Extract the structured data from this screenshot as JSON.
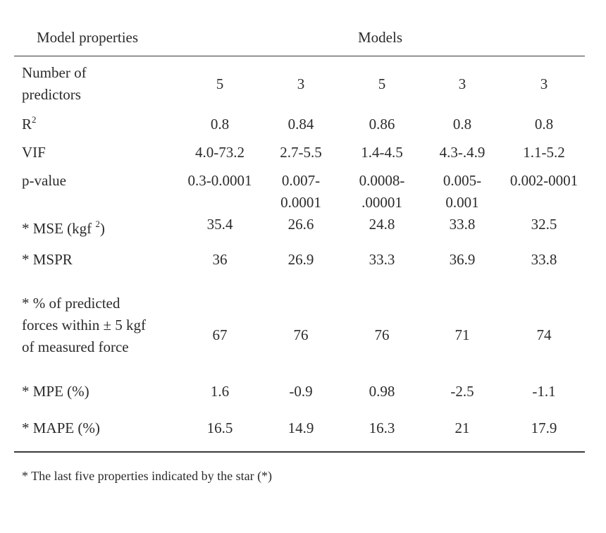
{
  "header": {
    "left": "Model properties",
    "right": "Models"
  },
  "rows": [
    {
      "label": "Number of\npredictors",
      "values": [
        "5",
        "3",
        "5",
        "3",
        "3"
      ]
    },
    {
      "label": "R",
      "label_sup": "2",
      "values": [
        "0.8",
        "0.84",
        "0.86",
        "0.8",
        "0.8"
      ]
    },
    {
      "label": "VIF",
      "values": [
        "4.0-73.2",
        "2.7-5.5",
        "1.4-4.5",
        "4.3-.4.9",
        "1.1-5.2"
      ]
    },
    {
      "label": "p-value",
      "values": [
        "0.3-0.0001",
        "0.007-\n0.0001",
        "0.0008-\n.00001",
        "0.005-\n0.001",
        "0.002-0001"
      ]
    },
    {
      "label": "* MSE (kgf ",
      "label_sup": "2",
      "label_after": ")",
      "values": [
        "35.4",
        "26.6",
        "24.8",
        "33.8",
        "32.5"
      ]
    },
    {
      "label": "* MSPR",
      "values": [
        "36",
        "26.9",
        "33.3",
        "36.9",
        "33.8"
      ]
    },
    {
      "label": "* % of predicted\nforces within ± 5 kgf\nof measured force",
      "values": [
        "67",
        "76",
        "76",
        "71",
        "74"
      ]
    },
    {
      "label": "* MPE (%)",
      "values": [
        "1.6",
        "-0.9",
        "0.98",
        "-2.5",
        "-1.1"
      ]
    },
    {
      "label": "* MAPE (%)",
      "values": [
        "16.5",
        "14.9",
        "16.3",
        "21",
        "17.9"
      ]
    }
  ],
  "footnote": "* The last five properties indicated by the star (*)"
}
